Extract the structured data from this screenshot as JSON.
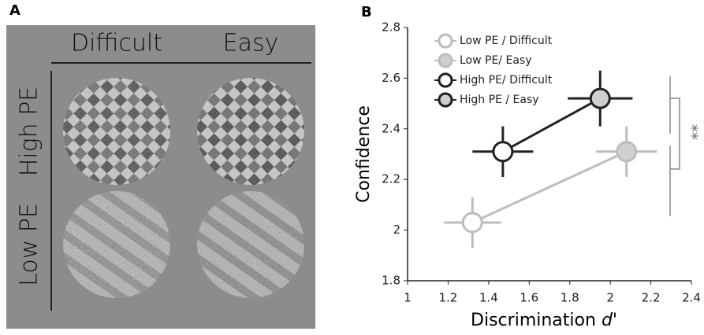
{
  "panel_a": {
    "label": "A",
    "columns": [
      "Difficult",
      "Easy"
    ],
    "rows": [
      "High PE",
      "Low PE"
    ]
  },
  "chart_data": {
    "type": "scatter",
    "label": "B",
    "ylabel": "Confidence",
    "xlabel": "Discrimination",
    "xlabel_italic": "d'",
    "xlim": [
      1,
      2.4
    ],
    "xticks": [
      1,
      1.2,
      1.4,
      1.6,
      1.8,
      2,
      2.2,
      2.4
    ],
    "ylim": [
      1.8,
      2.8
    ],
    "yticks": [
      1.8,
      2,
      2.2,
      2.4,
      2.6,
      2.8
    ],
    "series": [
      {
        "name": "Low PE / Difficult",
        "color": "#bdbdbd",
        "fill": "#ffffff",
        "x": [
          1.32
        ],
        "y": [
          2.03
        ],
        "xerr": [
          0.14
        ],
        "yerr": [
          0.1
        ]
      },
      {
        "name": "Low PE/ Easy",
        "color": "#bdbdbd",
        "fill": "#cfcfcf",
        "x": [
          2.08
        ],
        "y": [
          2.31
        ],
        "xerr": [
          0.15
        ],
        "yerr": [
          0.1
        ]
      },
      {
        "name": "High PE/ Difficult",
        "color": "#222222",
        "fill": "#ffffff",
        "x": [
          1.47
        ],
        "y": [
          2.31
        ],
        "xerr": [
          0.15
        ],
        "yerr": [
          0.1
        ]
      },
      {
        "name": "High PE / Easy",
        "color": "#222222",
        "fill": "#cfcfcf",
        "x": [
          1.95
        ],
        "y": [
          2.52
        ],
        "xerr": [
          0.16
        ],
        "yerr": [
          0.11
        ]
      }
    ],
    "annotation": "**"
  }
}
